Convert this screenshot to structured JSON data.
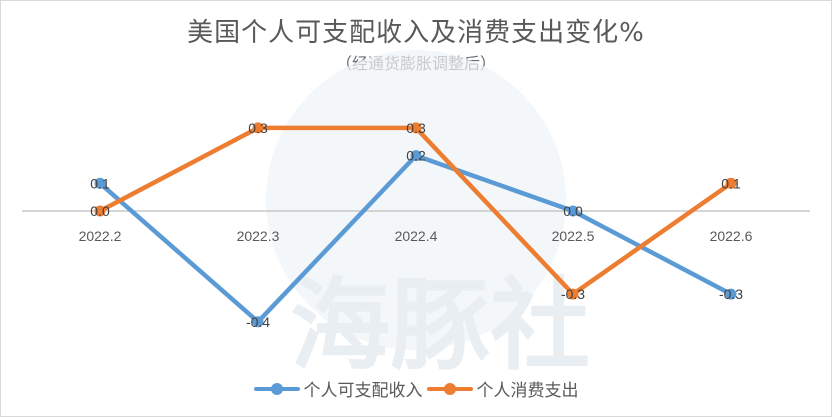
{
  "chart_data": {
    "type": "line",
    "title": "美国个人可支配收入及消费支出变化%",
    "subtitle": "（经通货膨胀调整后）",
    "xlabel": "",
    "ylabel": "",
    "categories": [
      "2022.2",
      "2022.3",
      "2022.4",
      "2022.5",
      "2022.6"
    ],
    "series": [
      {
        "name": "个人可支配收入",
        "color": "#5b9bd5",
        "values": [
          0.1,
          -0.4,
          0.2,
          0.0,
          -0.3
        ],
        "labels": [
          "0.1",
          "-0.4",
          "0.2",
          "0.0",
          "-0.3"
        ]
      },
      {
        "name": "个人消费支出",
        "color": "#ed7d31",
        "values": [
          0.0,
          0.3,
          0.3,
          -0.3,
          0.1
        ],
        "labels": [
          "0.0",
          "0.3",
          "0.3",
          "-0.3",
          "0.1"
        ]
      }
    ],
    "ylim": [
      -0.5,
      0.4
    ],
    "grid": false,
    "axis_line_at_zero": true,
    "legend_position": "bottom",
    "data_labels": true,
    "watermark": "海豚社"
  }
}
